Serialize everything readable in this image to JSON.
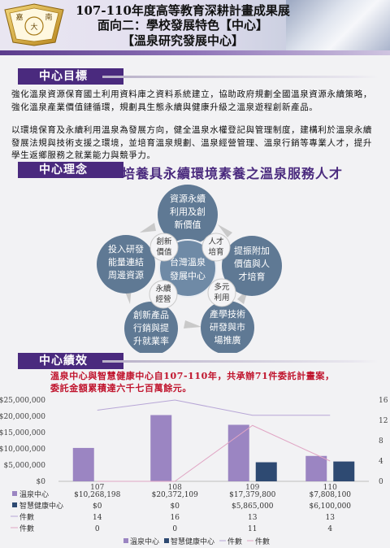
{
  "header": {
    "line1": "107-110年度高等教育深耕計畫成果展",
    "line2": "面向二：學校發展特色【中心】",
    "line3": "【溫泉研究發展中心】",
    "logo_chars": [
      "嘉",
      "南",
      "大"
    ]
  },
  "section_goal": {
    "title": "中心目標",
    "p1": "強化溫泉資源保育國土利用資料庫之資料系統建立，協助政府規劃全國溫泉資源永續策略，強化溫泉產業價值鏈循環，規劃具生態永續與健康升級之溫泉遊程創新產品。",
    "p2": "以環境保育及永續利用溫泉為發展方向，健全溫泉水權登記與管理制度，建構利於溫泉永續發展法規與技術支援之環境，並培育溫泉規劃、溫泉經營管理、溫泉行銷等專業人才，提升學生返鄉服務之就業能力與競爭力。"
  },
  "section_idea": {
    "title": "中心理念",
    "slogan": "培養具永續環境素養之溫泉服務人才",
    "center": [
      "台灣溫泉",
      "發展中心"
    ],
    "nodes": [
      [
        "資源永續",
        "利用及創",
        "新價值"
      ],
      [
        "提振附加",
        "價值與人",
        "才培育"
      ],
      [
        "產學技術",
        "研發與市",
        "場推廣"
      ],
      [
        "創新產品",
        "行銷與提",
        "升就業率"
      ],
      [
        "投入研發",
        "能量連結",
        "周邊資源"
      ]
    ],
    "small": [
      [
        "創新",
        "價值"
      ],
      [
        "人才",
        "培育"
      ],
      [
        "多元",
        "利用"
      ],
      [
        "永續",
        "經營"
      ]
    ],
    "colors": {
      "node": "#5f7994",
      "center": "#6f8aa6",
      "small": "#f4f4f6",
      "arrow": "#c9c9c9"
    }
  },
  "section_perf": {
    "title": "中心績效",
    "summary1": "溫泉中心與智慧健康中心自107-110年，共承辦71件委託計畫案，",
    "summary2": "委託金額累積達六千七百萬餘元。"
  },
  "chart_data": {
    "type": "bar",
    "categories": [
      "107",
      "108",
      "109",
      "110"
    ],
    "series": [
      {
        "name": "溫泉中心",
        "axis": "left",
        "kind": "bar",
        "color": "#9b85c2",
        "values": [
          10268198,
          20372109,
          17379800,
          7808100
        ],
        "labels": [
          "$10,268,198",
          "$20,372,109",
          "$17,379,800",
          "$7,808,100"
        ]
      },
      {
        "name": "智慧健康中心",
        "axis": "left",
        "kind": "bar",
        "color": "#2e4a72",
        "values": [
          0,
          0,
          5865000,
          6100000
        ],
        "labels": [
          "$0",
          "$0",
          "$5,865,000",
          "$6,100,000"
        ]
      },
      {
        "name": "件數",
        "axis": "right",
        "kind": "line",
        "color": "#b7a6d6",
        "values": [
          14,
          16,
          13,
          13
        ],
        "labels": [
          "14",
          "16",
          "13",
          "13"
        ]
      },
      {
        "name": "件數",
        "axis": "right",
        "kind": "line",
        "color": "#e0a5c4",
        "values": [
          0,
          0,
          11,
          4
        ],
        "labels": [
          "0",
          "0",
          "11",
          "4"
        ]
      }
    ],
    "left_axis": {
      "min": 0,
      "max": 25000000,
      "ticks": [
        "$0",
        "$5,000,000",
        "$10,000,000",
        "$15,000,000",
        "$20,000,000",
        "$25,000,000"
      ]
    },
    "right_axis": {
      "min": 0,
      "max": 16,
      "ticks": [
        "0",
        "4",
        "8",
        "12",
        "16"
      ]
    },
    "legend": "bottom",
    "grid": false
  }
}
